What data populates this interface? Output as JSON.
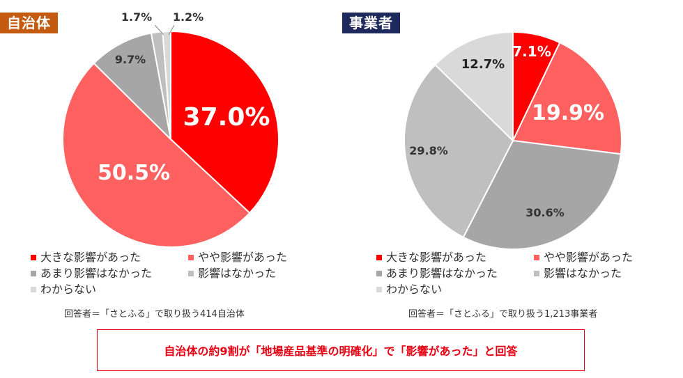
{
  "colors": {
    "large_effect": "#ff0000",
    "some_effect": "#ff6161",
    "little_effect": "#a6a6a6",
    "no_effect": "#bfbfbf",
    "unknown": "#d9d9d9",
    "tag_left_bg": "#c55a11",
    "tag_right_bg": "#1f2a5c",
    "banner": "#e60012"
  },
  "chart_data": [
    {
      "type": "pie",
      "title": "自治体",
      "categories": [
        "大きな影響があった",
        "やや影響があった",
        "あまり影響はなかった",
        "影響はなかった",
        "わからない"
      ],
      "values": [
        37.0,
        50.5,
        9.7,
        1.7,
        1.2
      ],
      "value_labels": [
        "37.0%",
        "50.5%",
        "9.7%",
        "1.7%",
        "1.2%"
      ],
      "note": "回答者＝「さとふる」で取り扱う414自治体"
    },
    {
      "type": "pie",
      "title": "事業者",
      "categories": [
        "大きな影響があった",
        "やや影響があった",
        "あまり影響はなかった",
        "影響はなかった",
        "わからない"
      ],
      "values": [
        7.1,
        19.9,
        30.6,
        29.8,
        12.7
      ],
      "value_labels": [
        "7.1%",
        "19.9%",
        "30.6%",
        "29.8%",
        "12.7%"
      ],
      "note": "回答者＝「さとふる」で取り扱う1,213事業者"
    }
  ],
  "legend": {
    "items": [
      "大きな影響があった",
      "やや影響があった",
      "あまり影響はなかった",
      "影響はなかった",
      "わからない"
    ]
  },
  "banner_text": "自治体の約9割が「地場産品基準の明確化」で「影響があった」と回答"
}
